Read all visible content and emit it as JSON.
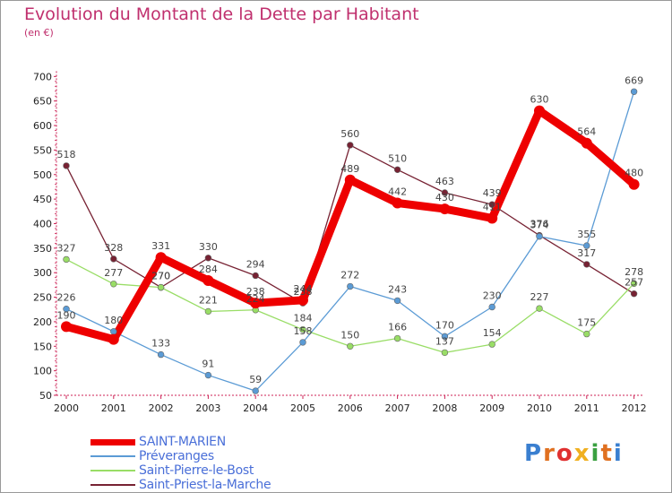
{
  "title": "Evolution du Montant de la Dette par Habitant",
  "subtitle": "(en €)",
  "logo": "Proxiti",
  "colors": {
    "title": "#c0306e",
    "axis": "#cc2255",
    "legend_text": "#4a6fd8"
  },
  "chart_data": {
    "type": "line",
    "title": "Evolution du Montant de la Dette par Habitant",
    "ylabel": "(en €)",
    "xlabel": "",
    "x": [
      2000,
      2001,
      2002,
      2003,
      2004,
      2005,
      2006,
      2007,
      2008,
      2009,
      2010,
      2011,
      2012
    ],
    "ylim": [
      50,
      700
    ],
    "yticks": [
      50,
      100,
      150,
      200,
      250,
      300,
      350,
      400,
      450,
      500,
      550,
      600,
      650,
      700
    ],
    "grid": false,
    "legend_position": "bottom-left",
    "series": [
      {
        "name": "SAINT-MARIEN",
        "color": "#ee0000",
        "values": [
          190,
          164,
          331,
          284,
          238,
          244,
          489,
          442,
          430,
          411,
          630,
          564,
          480
        ]
      },
      {
        "name": "Préveranges",
        "color": "#5b9bd5",
        "values": [
          226,
          180,
          133,
          91,
          59,
          158,
          272,
          243,
          170,
          230,
          374,
          355,
          669
        ]
      },
      {
        "name": "Saint-Pierre-le-Bost",
        "color": "#99dd66",
        "values": [
          327,
          277,
          270,
          221,
          224,
          184,
          150,
          166,
          137,
          154,
          227,
          175,
          278
        ]
      },
      {
        "name": "Saint-Priest-la-Marche",
        "color": "#772233",
        "values": [
          518,
          328,
          270,
          330,
          294,
          238,
          560,
          510,
          463,
          439,
          376,
          317,
          257
        ]
      }
    ],
    "data_labels": [
      [
        "190",
        "",
        "331",
        "284",
        "238",
        "244",
        "489",
        "442",
        "430",
        "411",
        "630",
        "564",
        "480"
      ],
      [
        "226",
        "180",
        "133",
        "91",
        "59",
        "158",
        "272",
        "243",
        "170",
        "230",
        "374",
        "355",
        "669"
      ],
      [
        "327",
        "277",
        "270",
        "221",
        "224",
        "184",
        "150",
        "166",
        "137",
        "154",
        "227",
        "175",
        "278"
      ],
      [
        "518",
        "328",
        "270",
        "330",
        "294",
        "238",
        "560",
        "510",
        "463",
        "439",
        "376",
        "317",
        "257"
      ]
    ]
  }
}
